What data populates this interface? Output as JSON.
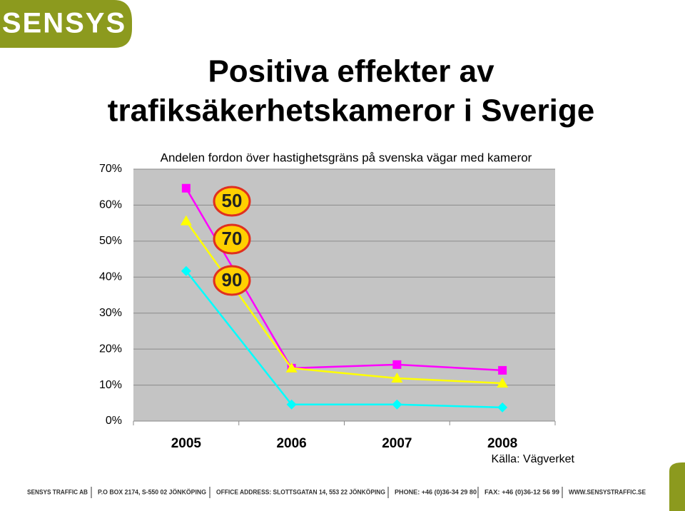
{
  "logo": "SENSYS",
  "slide_title": [
    "Positiva effekter av",
    "trafiksäkerhetskameror i Sverige"
  ],
  "chart_data": {
    "type": "line",
    "title": "Andelen fordon över hastighetsgräns på svenska vägar med kameror",
    "categories": [
      "2005",
      "2006",
      "2007",
      "2008"
    ],
    "series": [
      {
        "name": "50",
        "color": "#ff00ff",
        "marker": "square",
        "values": [
          64.7,
          14.7,
          15.7,
          14.1
        ]
      },
      {
        "name": "70",
        "color": "#ffff00",
        "marker": "triangle",
        "values": [
          55.6,
          14.7,
          11.9,
          10.5
        ]
      },
      {
        "name": "90",
        "color": "#00ffff",
        "marker": "diamond",
        "values": [
          41.7,
          4.6,
          4.6,
          3.8
        ]
      }
    ],
    "ylim": [
      0,
      70
    ],
    "yticks": [
      {
        "value": 0,
        "label": "0%"
      },
      {
        "value": 10,
        "label": "10%"
      },
      {
        "value": 20,
        "label": "20%"
      },
      {
        "value": 30,
        "label": "30%"
      },
      {
        "value": 40,
        "label": "40%"
      },
      {
        "value": 50,
        "label": "50%"
      },
      {
        "value": 60,
        "label": "60%"
      },
      {
        "value": 70,
        "label": "70%"
      }
    ],
    "grid": true,
    "source": "Källa: Vägverket"
  },
  "footer": [
    "SENSYS TRAFFIC AB",
    "P.O BOX 2174, S-550 02 JÖNKÖPING",
    "OFFICE ADDRESS: SLOTTSGATAN 14, 553 22 JÖNKÖPING",
    "PHONE: +46 (0)36-34 29 80",
    "FAX: +46 (0)36-12 56 99",
    "WWW.SENSYSTRAFFIC.SE"
  ]
}
